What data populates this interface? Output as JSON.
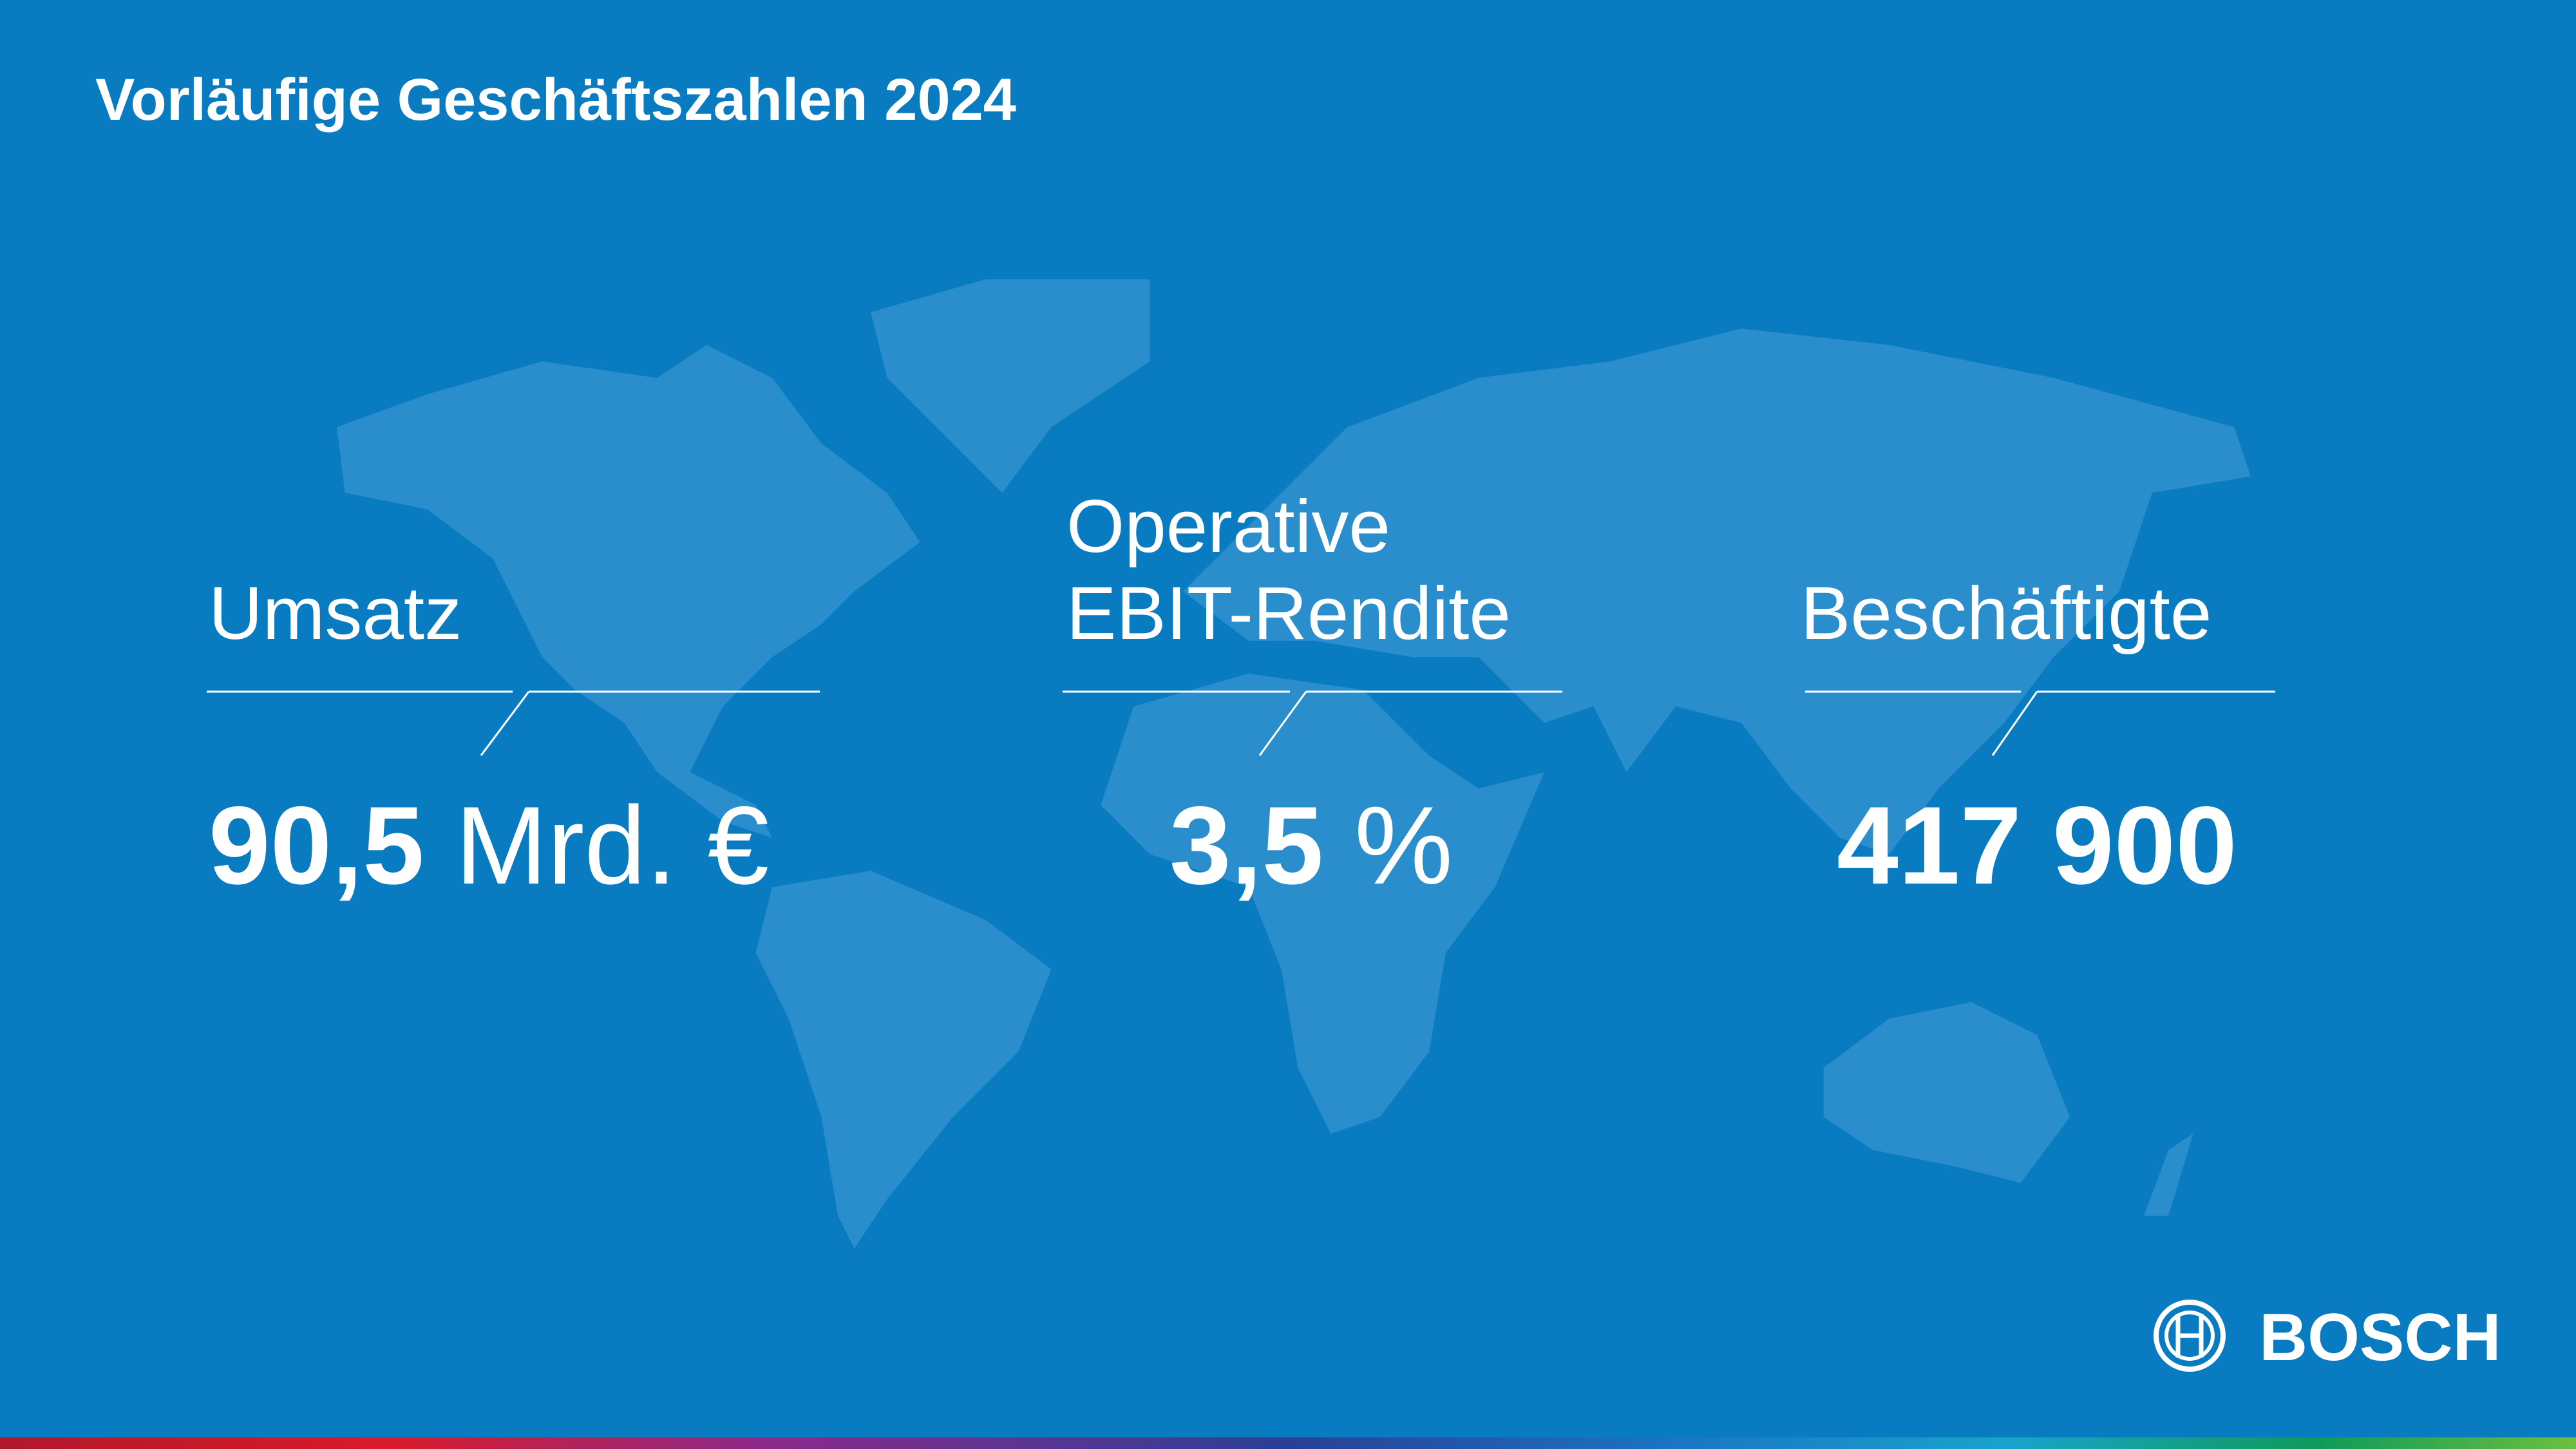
{
  "header": {
    "title": "Vorläufige Geschäftszahlen 2024"
  },
  "kpis": [
    {
      "label": [
        "Umsatz"
      ],
      "value": "90,5",
      "unit": "Mrd. €"
    },
    {
      "label": [
        "Operative",
        "EBIT-Rendite"
      ],
      "value": "3,5",
      "unit": "%"
    },
    {
      "label": [
        "Beschäftigte"
      ],
      "value": "417 900"
    }
  ],
  "logo": "BOSCH"
}
